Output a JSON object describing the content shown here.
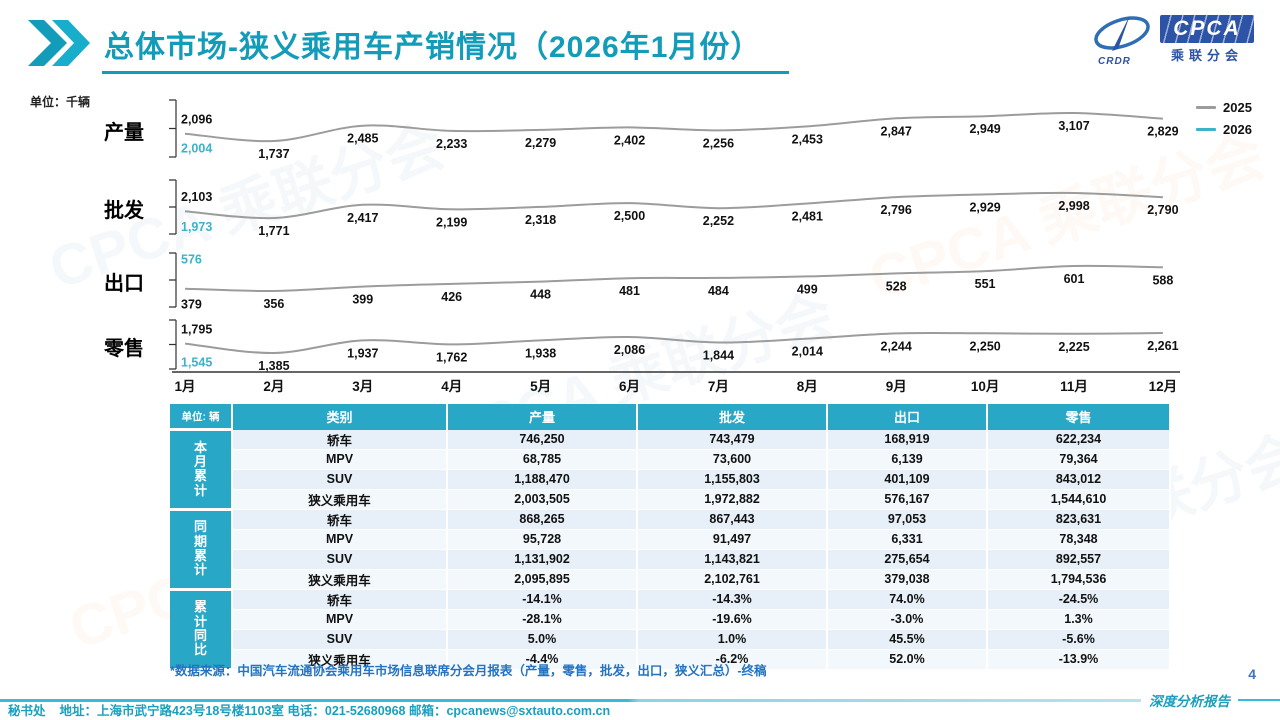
{
  "header": {
    "title": "总体市场-狭义乘用车产销情况（2026年1月份）"
  },
  "logo": {
    "cpca": "CPCA",
    "crdr": "CRDR",
    "name_cn": "乘联分会"
  },
  "decor": {
    "watermark_text": "CPCA 乘联分会"
  },
  "chart_data": {
    "type": "line",
    "unit": "单位：千辆",
    "categories": [
      "1月",
      "2月",
      "3月",
      "4月",
      "5月",
      "6月",
      "7月",
      "8月",
      "9月",
      "10月",
      "11月",
      "12月"
    ],
    "legend": [
      "2025",
      "2026"
    ],
    "legend_position": "right-top",
    "colors": {
      "2025": "#9c9c9c",
      "2026": "#3ab3cb"
    },
    "panels": [
      {
        "label": "产量",
        "series": [
          {
            "name": "2025",
            "values": [
              2096,
              1737,
              2485,
              2233,
              2279,
              2402,
              2256,
              2453,
              2847,
              2949,
              3107,
              2829
            ]
          },
          {
            "name": "2026",
            "values": [
              2004
            ]
          }
        ]
      },
      {
        "label": "批发",
        "series": [
          {
            "name": "2025",
            "values": [
              2103,
              1771,
              2417,
              2199,
              2318,
              2500,
              2252,
              2481,
              2796,
              2929,
              2998,
              2790
            ]
          },
          {
            "name": "2026",
            "values": [
              1973
            ]
          }
        ]
      },
      {
        "label": "出口",
        "series": [
          {
            "name": "2025",
            "values": [
              379,
              356,
              399,
              426,
              448,
              481,
              484,
              499,
              528,
              551,
              601,
              588
            ]
          },
          {
            "name": "2026",
            "values": [
              576
            ]
          }
        ]
      },
      {
        "label": "零售",
        "series": [
          {
            "name": "2025",
            "values": [
              1795,
              1385,
              1937,
              1762,
              1938,
              2086,
              1844,
              2014,
              2244,
              2250,
              2225,
              2261
            ]
          },
          {
            "name": "2026",
            "values": [
              1545
            ]
          }
        ]
      }
    ]
  },
  "table": {
    "unit_header": "单位: 辆",
    "columns": [
      "类别",
      "产量",
      "批发",
      "出口",
      "零售"
    ],
    "groups": [
      {
        "label": "本月累计",
        "rows": [
          {
            "category": "轿车",
            "values": [
              "746,250",
              "743,479",
              "168,919",
              "622,234"
            ]
          },
          {
            "category": "MPV",
            "values": [
              "68,785",
              "73,600",
              "6,139",
              "79,364"
            ]
          },
          {
            "category": "SUV",
            "values": [
              "1,188,470",
              "1,155,803",
              "401,109",
              "843,012"
            ]
          },
          {
            "category": "狭义乘用车",
            "values": [
              "2,003,505",
              "1,972,882",
              "576,167",
              "1,544,610"
            ]
          }
        ]
      },
      {
        "label": "同期累计",
        "rows": [
          {
            "category": "轿车",
            "values": [
              "868,265",
              "867,443",
              "97,053",
              "823,631"
            ]
          },
          {
            "category": "MPV",
            "values": [
              "95,728",
              "91,497",
              "6,331",
              "78,348"
            ]
          },
          {
            "category": "SUV",
            "values": [
              "1,131,902",
              "1,143,821",
              "275,654",
              "892,557"
            ]
          },
          {
            "category": "狭义乘用车",
            "values": [
              "2,095,895",
              "2,102,761",
              "379,038",
              "1,794,536"
            ]
          }
        ]
      },
      {
        "label": "累计同比",
        "rows": [
          {
            "category": "轿车",
            "values": [
              "-14.1%",
              "-14.3%",
              "74.0%",
              "-24.5%"
            ]
          },
          {
            "category": "MPV",
            "values": [
              "-28.1%",
              "-19.6%",
              "-3.0%",
              "1.3%"
            ]
          },
          {
            "category": "SUV",
            "values": [
              "5.0%",
              "1.0%",
              "45.5%",
              "-5.6%"
            ]
          },
          {
            "category": "狭义乘用车",
            "values": [
              "-4.4%",
              "-6.2%",
              "52.0%",
              "-13.9%"
            ]
          }
        ]
      }
    ]
  },
  "note": "*数据来源：中国汽车流通协会乘用车市场信息联席分会月报表（产量，零售，批发，出口，狭义汇总）-终稿",
  "footer": {
    "secretariat": "秘书处",
    "contact": "地址：上海市武宁路423号18号楼1103室 电话：021-52680968   邮箱：cpcanews@sxtauto.com.cn",
    "report_label": "深度分析报告",
    "page": "4"
  }
}
